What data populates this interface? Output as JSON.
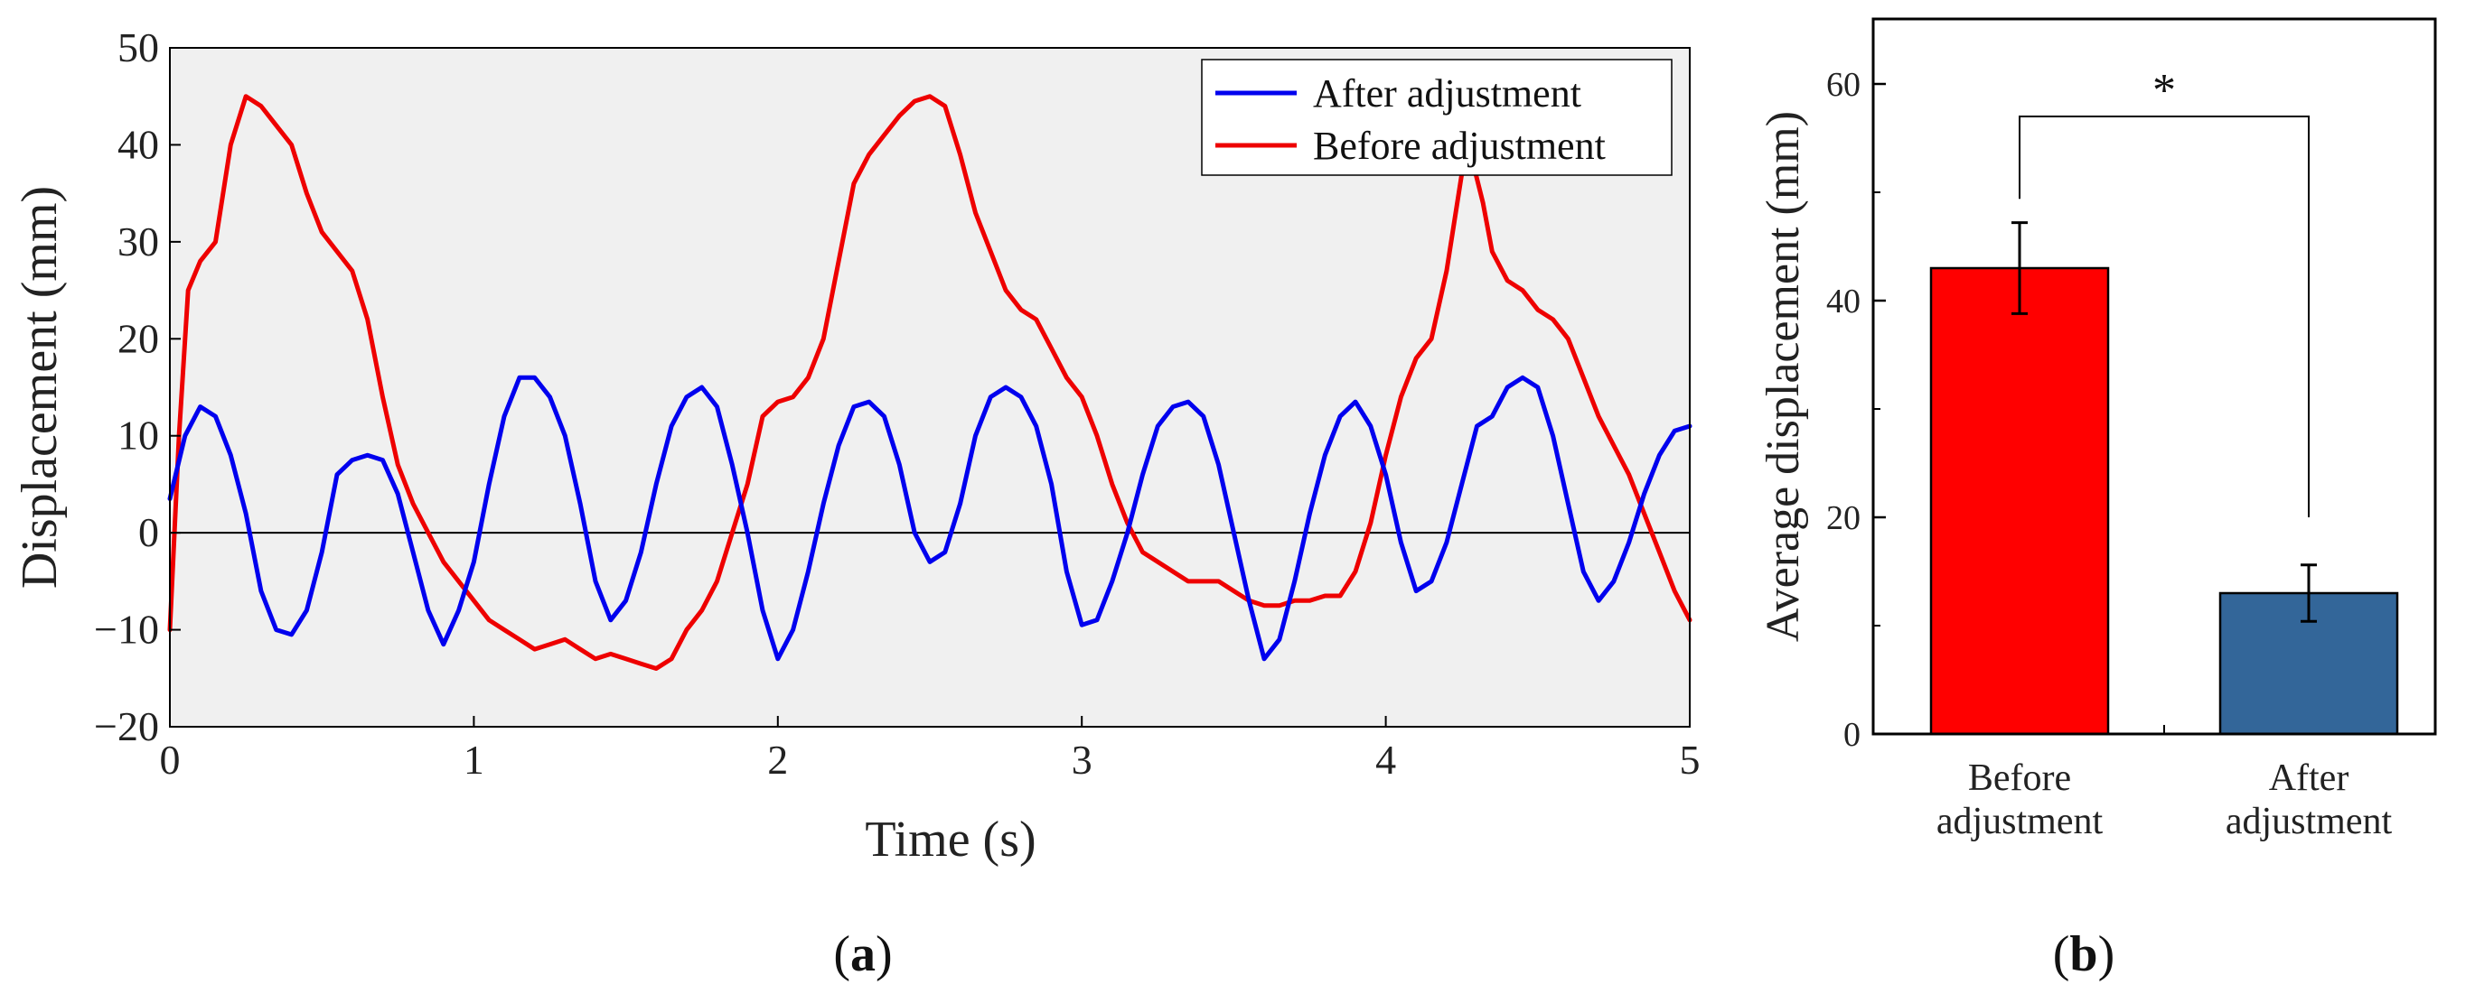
{
  "chart_data": [
    {
      "panel": "(a)",
      "type": "line",
      "xlabel": "Time (s)",
      "ylabel": "Displacement (mm)",
      "xlim": [
        0,
        5
      ],
      "ylim": [
        -20,
        50
      ],
      "xticks": [
        0,
        1,
        2,
        3,
        4,
        5
      ],
      "yticks": [
        -20,
        -10,
        0,
        10,
        20,
        30,
        40,
        50
      ],
      "ytick_labels": [
        "−20",
        "−10",
        "0",
        "10",
        "20",
        "30",
        "40",
        "50"
      ],
      "legend_position": "top-right",
      "background": "#f0f0f0",
      "series": [
        {
          "name": "After adjustment",
          "color": "#0000ee",
          "points": [
            [
              0,
              3.5
            ],
            [
              0.05,
              10
            ],
            [
              0.1,
              13
            ],
            [
              0.15,
              12
            ],
            [
              0.2,
              8
            ],
            [
              0.25,
              2
            ],
            [
              0.3,
              -6
            ],
            [
              0.35,
              -10
            ],
            [
              0.4,
              -10.5
            ],
            [
              0.45,
              -8
            ],
            [
              0.5,
              -2
            ],
            [
              0.55,
              6
            ],
            [
              0.6,
              7.5
            ],
            [
              0.65,
              8
            ],
            [
              0.7,
              7.5
            ],
            [
              0.75,
              4
            ],
            [
              0.8,
              -2
            ],
            [
              0.85,
              -8
            ],
            [
              0.9,
              -11.5
            ],
            [
              0.95,
              -8
            ],
            [
              1.0,
              -3
            ],
            [
              1.05,
              5
            ],
            [
              1.1,
              12
            ],
            [
              1.15,
              16
            ],
            [
              1.2,
              16
            ],
            [
              1.25,
              14
            ],
            [
              1.3,
              10
            ],
            [
              1.35,
              3
            ],
            [
              1.4,
              -5
            ],
            [
              1.45,
              -9
            ],
            [
              1.5,
              -7
            ],
            [
              1.55,
              -2
            ],
            [
              1.6,
              5
            ],
            [
              1.65,
              11
            ],
            [
              1.7,
              14
            ],
            [
              1.75,
              15
            ],
            [
              1.8,
              13
            ],
            [
              1.85,
              7
            ],
            [
              1.9,
              0
            ],
            [
              1.95,
              -8
            ],
            [
              2.0,
              -13
            ],
            [
              2.05,
              -10
            ],
            [
              2.1,
              -4
            ],
            [
              2.15,
              3
            ],
            [
              2.2,
              9
            ],
            [
              2.25,
              13
            ],
            [
              2.3,
              13.5
            ],
            [
              2.35,
              12
            ],
            [
              2.4,
              7
            ],
            [
              2.45,
              0
            ],
            [
              2.5,
              -3
            ],
            [
              2.55,
              -2
            ],
            [
              2.6,
              3
            ],
            [
              2.65,
              10
            ],
            [
              2.7,
              14
            ],
            [
              2.75,
              15
            ],
            [
              2.8,
              14
            ],
            [
              2.85,
              11
            ],
            [
              2.9,
              5
            ],
            [
              2.95,
              -4
            ],
            [
              3.0,
              -9.5
            ],
            [
              3.05,
              -9
            ],
            [
              3.1,
              -5
            ],
            [
              3.15,
              0
            ],
            [
              3.2,
              6
            ],
            [
              3.25,
              11
            ],
            [
              3.3,
              13
            ],
            [
              3.35,
              13.5
            ],
            [
              3.4,
              12
            ],
            [
              3.45,
              7
            ],
            [
              3.5,
              0
            ],
            [
              3.55,
              -7
            ],
            [
              3.6,
              -13
            ],
            [
              3.65,
              -11
            ],
            [
              3.7,
              -5
            ],
            [
              3.75,
              2
            ],
            [
              3.8,
              8
            ],
            [
              3.85,
              12
            ],
            [
              3.9,
              13.5
            ],
            [
              3.95,
              11
            ],
            [
              4.0,
              6
            ],
            [
              4.05,
              -1
            ],
            [
              4.1,
              -6
            ],
            [
              4.15,
              -5
            ],
            [
              4.2,
              -1
            ],
            [
              4.25,
              5
            ],
            [
              4.3,
              11
            ],
            [
              4.35,
              12
            ],
            [
              4.4,
              15
            ],
            [
              4.45,
              16
            ],
            [
              4.5,
              15
            ],
            [
              4.55,
              10
            ],
            [
              4.6,
              3
            ],
            [
              4.65,
              -4
            ],
            [
              4.7,
              -7
            ],
            [
              4.75,
              -5
            ],
            [
              4.8,
              -1
            ],
            [
              4.85,
              4
            ],
            [
              4.9,
              8
            ],
            [
              4.95,
              10.5
            ],
            [
              5.0,
              11
            ]
          ]
        },
        {
          "name": "Before adjustment",
          "color": "#ee0000",
          "points": [
            [
              0,
              -10
            ],
            [
              0.03,
              10
            ],
            [
              0.06,
              25
            ],
            [
              0.1,
              28
            ],
            [
              0.15,
              30
            ],
            [
              0.2,
              40
            ],
            [
              0.25,
              45
            ],
            [
              0.3,
              44
            ],
            [
              0.35,
              42
            ],
            [
              0.4,
              40
            ],
            [
              0.45,
              35
            ],
            [
              0.5,
              31
            ],
            [
              0.55,
              29
            ],
            [
              0.6,
              27
            ],
            [
              0.65,
              22
            ],
            [
              0.7,
              14
            ],
            [
              0.75,
              7
            ],
            [
              0.8,
              3
            ],
            [
              0.85,
              0
            ],
            [
              0.9,
              -3
            ],
            [
              0.95,
              -5
            ],
            [
              1.0,
              -7
            ],
            [
              1.05,
              -9
            ],
            [
              1.1,
              -10
            ],
            [
              1.15,
              -11
            ],
            [
              1.2,
              -12
            ],
            [
              1.25,
              -11.5
            ],
            [
              1.3,
              -11
            ],
            [
              1.35,
              -12
            ],
            [
              1.4,
              -13
            ],
            [
              1.45,
              -12.5
            ],
            [
              1.5,
              -13
            ],
            [
              1.55,
              -13.5
            ],
            [
              1.6,
              -14
            ],
            [
              1.65,
              -13
            ],
            [
              1.7,
              -10
            ],
            [
              1.75,
              -8
            ],
            [
              1.8,
              -5
            ],
            [
              1.85,
              0
            ],
            [
              1.9,
              5
            ],
            [
              1.95,
              12
            ],
            [
              2.0,
              13.5
            ],
            [
              2.05,
              14
            ],
            [
              2.1,
              16
            ],
            [
              2.15,
              20
            ],
            [
              2.2,
              28
            ],
            [
              2.25,
              36
            ],
            [
              2.3,
              39
            ],
            [
              2.35,
              41
            ],
            [
              2.4,
              43
            ],
            [
              2.45,
              44.5
            ],
            [
              2.5,
              45
            ],
            [
              2.55,
              44
            ],
            [
              2.6,
              39
            ],
            [
              2.65,
              33
            ],
            [
              2.7,
              29
            ],
            [
              2.75,
              25
            ],
            [
              2.8,
              23
            ],
            [
              2.85,
              22
            ],
            [
              2.9,
              19
            ],
            [
              2.95,
              16
            ],
            [
              3.0,
              14
            ],
            [
              3.05,
              10
            ],
            [
              3.1,
              5
            ],
            [
              3.15,
              1
            ],
            [
              3.2,
              -2
            ],
            [
              3.25,
              -3
            ],
            [
              3.3,
              -4
            ],
            [
              3.35,
              -5
            ],
            [
              3.4,
              -5
            ],
            [
              3.45,
              -5
            ],
            [
              3.5,
              -6
            ],
            [
              3.55,
              -7
            ],
            [
              3.6,
              -7.5
            ],
            [
              3.65,
              -7.5
            ],
            [
              3.7,
              -7
            ],
            [
              3.75,
              -7
            ],
            [
              3.8,
              -6.5
            ],
            [
              3.85,
              -6.5
            ],
            [
              3.9,
              -4
            ],
            [
              3.95,
              1
            ],
            [
              4.0,
              8
            ],
            [
              4.05,
              14
            ],
            [
              4.1,
              18
            ],
            [
              4.15,
              20
            ],
            [
              4.2,
              27
            ],
            [
              4.25,
              37
            ],
            [
              4.28,
              39
            ],
            [
              4.32,
              34
            ],
            [
              4.35,
              29
            ],
            [
              4.4,
              26
            ],
            [
              4.45,
              25
            ],
            [
              4.5,
              23
            ],
            [
              4.55,
              22
            ],
            [
              4.6,
              20
            ],
            [
              4.65,
              16
            ],
            [
              4.7,
              12
            ],
            [
              4.75,
              9
            ],
            [
              4.8,
              6
            ],
            [
              4.85,
              2
            ],
            [
              4.9,
              -2
            ],
            [
              4.95,
              -6
            ],
            [
              5.0,
              -9
            ]
          ]
        }
      ]
    },
    {
      "panel": "(b)",
      "type": "bar",
      "ylabel": "Average displacement (mm)",
      "ylim": [
        0,
        66
      ],
      "yticks": [
        0,
        20,
        40,
        60
      ],
      "ytick_labels": [
        "0",
        "20",
        "40",
        "60"
      ],
      "categories": [
        [
          "Before",
          "adjustment"
        ],
        [
          "After",
          "adjustment"
        ]
      ],
      "values": [
        43,
        13
      ],
      "errors": [
        4.2,
        2.6
      ],
      "colors": [
        "#ff0000",
        "#336699"
      ],
      "significance": "*"
    }
  ]
}
